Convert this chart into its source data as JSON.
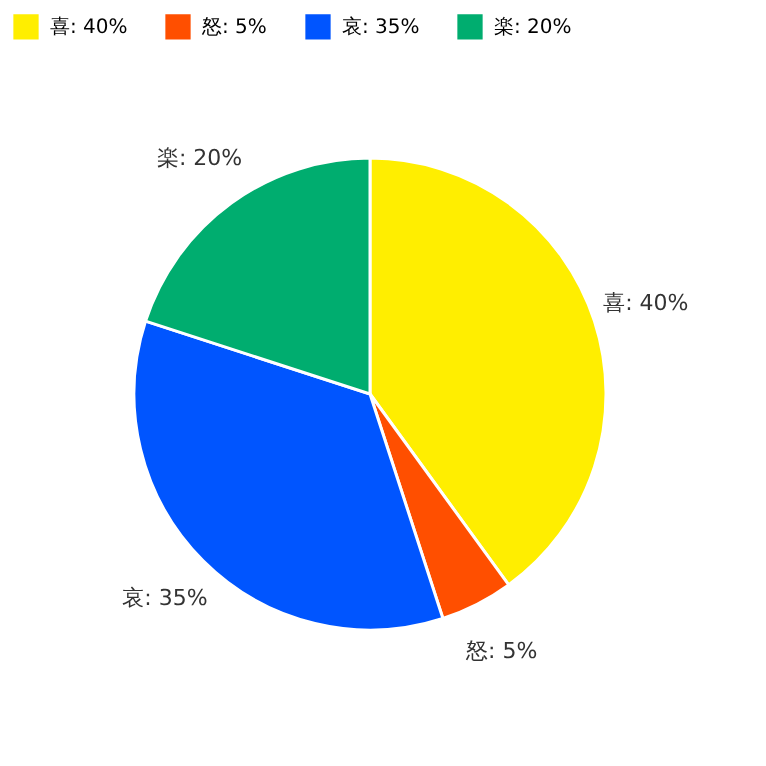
{
  "chart_data": {
    "type": "pie",
    "categories": [
      "喜: 40%",
      "怒: 5%",
      "哀: 35%",
      "楽: 20%"
    ],
    "values": [
      40,
      5,
      35,
      20
    ],
    "colors": [
      "#ffee00",
      "#ff4f00",
      "#0055ff",
      "#00ad6f"
    ],
    "legend": "top"
  }
}
